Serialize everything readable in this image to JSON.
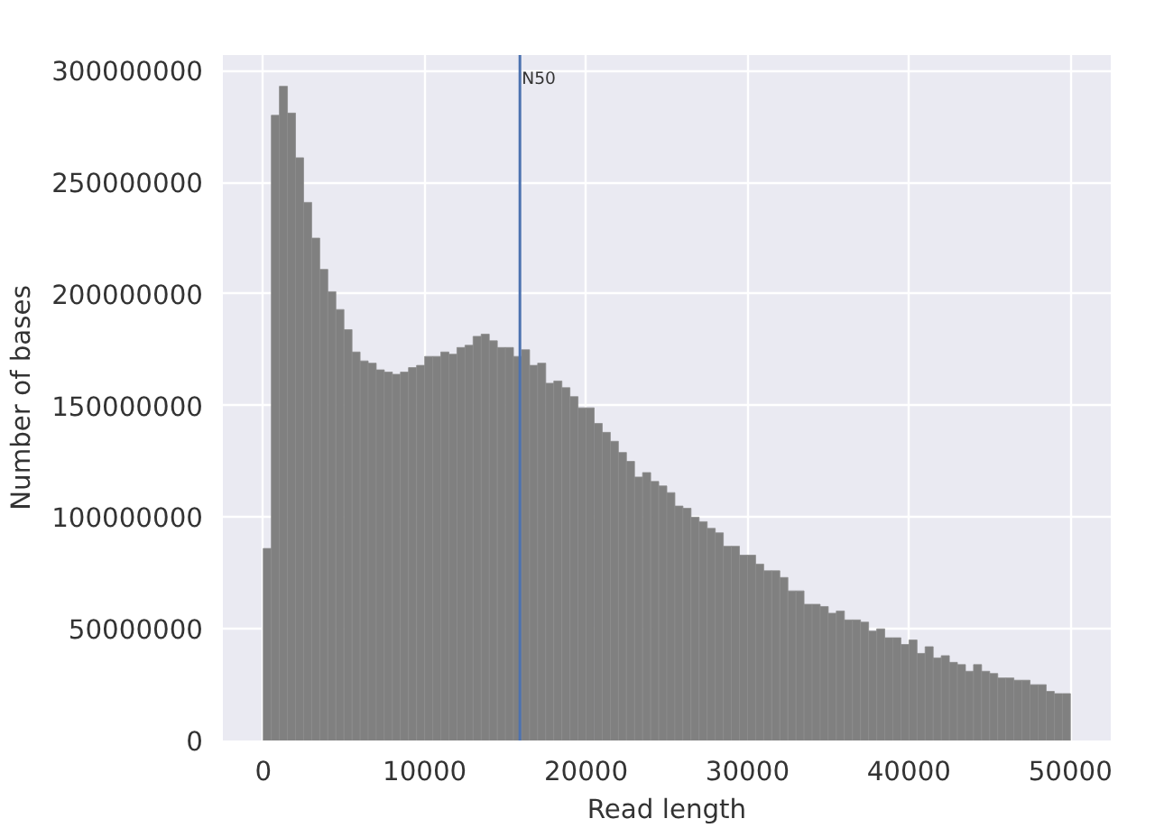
{
  "chart_data": {
    "type": "histogram",
    "xlabel": "Read length",
    "ylabel": "Number of bases",
    "bins": [
      0,
      500,
      1000,
      1500,
      2000,
      2500,
      3000,
      3500,
      4000,
      4500,
      5000,
      5500,
      6000,
      6500,
      7000,
      7500,
      8000,
      8500,
      9000,
      9500,
      10000,
      10500,
      11000,
      11500,
      12000,
      12500,
      13000,
      13500,
      14000,
      14500,
      15000,
      15500,
      16000,
      16500,
      17000,
      17500,
      18000,
      18500,
      19000,
      19500,
      20000,
      20500,
      21000,
      21500,
      22000,
      22500,
      23000,
      23500,
      24000,
      24500,
      25000,
      25500,
      26000,
      26500,
      27000,
      27500,
      28000,
      28500,
      29000,
      29500,
      30000,
      30500,
      31000,
      31500,
      32000,
      32500,
      33000,
      33500,
      34000,
      34500,
      35000,
      35500,
      36000,
      36500,
      37000,
      37500,
      38000,
      38500,
      39000,
      39500,
      40000,
      40500,
      41000,
      41500,
      42000,
      42500,
      43000,
      43500,
      44000,
      44500,
      45000,
      45500,
      46000,
      46500,
      47000,
      47500,
      48000,
      48500,
      49000,
      49500,
      50000
    ],
    "values": [
      86000000,
      280000000,
      293000000,
      281000000,
      261000000,
      241000000,
      225000000,
      211000000,
      201000000,
      193000000,
      184000000,
      174000000,
      170000000,
      169000000,
      166000000,
      165000000,
      164000000,
      165000000,
      167000000,
      168000000,
      172000000,
      172000000,
      174000000,
      173000000,
      176000000,
      177000000,
      181000000,
      182000000,
      179000000,
      176000000,
      176000000,
      172000000,
      175000000,
      168000000,
      169000000,
      160000000,
      161000000,
      158000000,
      154000000,
      149000000,
      149000000,
      142000000,
      138000000,
      134000000,
      129000000,
      125000000,
      118000000,
      120000000,
      116000000,
      114000000,
      111000000,
      105000000,
      104000000,
      100000000,
      98000000,
      95000000,
      93000000,
      87000000,
      87000000,
      83000000,
      83000000,
      79000000,
      76000000,
      76000000,
      73000000,
      67000000,
      67000000,
      61000000,
      61000000,
      60000000,
      57000000,
      58000000,
      54000000,
      54000000,
      53000000,
      49000000,
      50000000,
      46000000,
      46000000,
      43000000,
      45000000,
      39000000,
      42000000,
      37000000,
      38000000,
      35000000,
      34000000,
      31000000,
      34000000,
      31000000,
      30000000,
      28000000,
      28000000,
      27000000,
      27000000,
      25000000,
      25000000,
      22000000,
      21000000,
      21000000
    ],
    "color": "#808080",
    "xlim": [
      -2500,
      52500
    ],
    "ylim": [
      0,
      307000000
    ],
    "xticks": [
      0,
      10000,
      20000,
      30000,
      40000,
      50000
    ],
    "yticks": [
      0,
      50000000,
      100000000,
      150000000,
      200000000,
      250000000,
      300000000
    ],
    "ref_lines": [
      {
        "axis": "x",
        "value": 15900,
        "label": "N50",
        "color": "#4c72b0"
      }
    ],
    "grid": true
  }
}
